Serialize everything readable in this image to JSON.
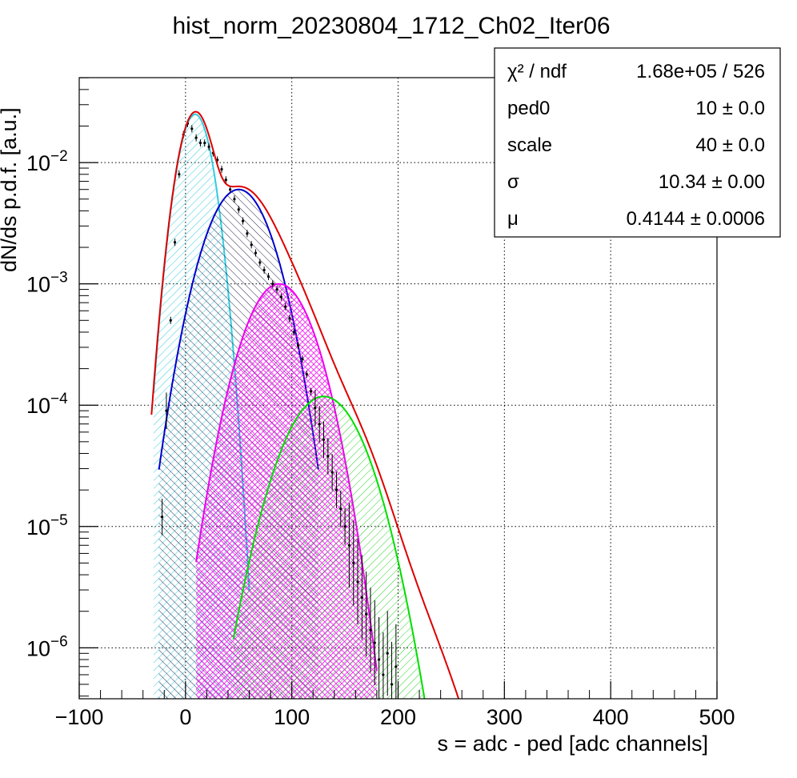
{
  "chart_data": {
    "type": "line",
    "title": "hist_norm_20230804_1712_Ch02_Iter06",
    "xlabel": "s = adc - ped [adc channels]",
    "ylabel": "dN/ds p.d.f. [a.u.]",
    "xlim": [
      -100,
      500
    ],
    "ylim_log10": [
      -6.42,
      -1.3
    ],
    "y_scale": "log",
    "grid": true,
    "x_ticks": [
      {
        "value": -100,
        "label": "−100"
      },
      {
        "value": 0,
        "label": "0"
      },
      {
        "value": 100,
        "label": "100"
      },
      {
        "value": 200,
        "label": "200"
      },
      {
        "value": 300,
        "label": "300"
      },
      {
        "value": 400,
        "label": "400"
      },
      {
        "value": 500,
        "label": "500"
      }
    ],
    "y_ticks": [
      {
        "exp": -2,
        "base": "10",
        "sup": "−2"
      },
      {
        "exp": -3,
        "base": "10",
        "sup": "−3"
      },
      {
        "exp": -4,
        "base": "10",
        "sup": "−4"
      },
      {
        "exp": -5,
        "base": "10",
        "sup": "−5"
      },
      {
        "exp": -6,
        "base": "10",
        "sup": "−6"
      }
    ],
    "components": [
      {
        "color": "#33ccdd",
        "fill": "#33ccdd",
        "mu": 9,
        "sigma": 12,
        "peak": 0.025,
        "x_range": [
          -30,
          60
        ]
      },
      {
        "color": "#0000cc",
        "fill": "#000044",
        "mu": 50,
        "sigma": 23,
        "peak": 0.006,
        "x_range": [
          -25,
          125
        ]
      },
      {
        "color": "#ee00ee",
        "fill": "#ee00ee",
        "mu": 88,
        "sigma": 24,
        "peak": 0.001,
        "x_range": [
          10,
          180
        ]
      },
      {
        "color": "#00dd00",
        "fill": "#00dd00",
        "mu": 130,
        "sigma": 28,
        "peak": 0.000118,
        "x_range": [
          45,
          225
        ]
      }
    ],
    "total_fit": {
      "color": "#dd0000",
      "x_range": [
        -32,
        265
      ]
    },
    "data_points": {
      "color": "#000000",
      "x": [
        -22,
        -18,
        -14,
        -10,
        -6,
        -2,
        2,
        6,
        10,
        14,
        18,
        22,
        26,
        30,
        34,
        38,
        42,
        46,
        50,
        54,
        58,
        62,
        66,
        70,
        74,
        78,
        82,
        86,
        90,
        94,
        98,
        102,
        106,
        110,
        114,
        118,
        122,
        126,
        130,
        134,
        138,
        142,
        146,
        150,
        154,
        158,
        162,
        166,
        170,
        174,
        178,
        182,
        186,
        190,
        194,
        198
      ],
      "y": [
        1.2e-05,
        9e-05,
        0.0005,
        0.0022,
        0.008,
        0.017,
        0.021,
        0.019,
        0.016,
        0.0145,
        0.0145,
        0.0135,
        0.012,
        0.0105,
        0.0088,
        0.0072,
        0.006,
        0.005,
        0.0041,
        0.0033,
        0.0026,
        0.0021,
        0.0018,
        0.0015,
        0.0013,
        0.00115,
        0.001,
        0.0009,
        0.00078,
        0.00065,
        0.00052,
        0.0004,
        0.00031,
        0.00024,
        0.00018,
        0.00013,
        9.5e-05,
        7e-05,
        5.2e-05,
        3.8e-05,
        2.8e-05,
        2e-05,
        1.4e-05,
        1e-05,
        7e-06,
        5e-06,
        3.5e-06,
        2.6e-06,
        1.9e-06,
        1.4e-06,
        1.1e-06,
        8e-07,
        6e-07,
        9e-07,
        5e-07,
        7e-07
      ]
    },
    "stats": [
      {
        "name": "χ² / ndf",
        "value": "1.68e+05 / 526"
      },
      {
        "name": "ped0",
        "value": "10 ± 0.0"
      },
      {
        "name": "scale",
        "value": "40 ± 0.0"
      },
      {
        "name": "σ",
        "value": "10.34 ± 0.00"
      },
      {
        "name": "μ",
        "value": "0.4144 ± 0.0006"
      }
    ]
  }
}
